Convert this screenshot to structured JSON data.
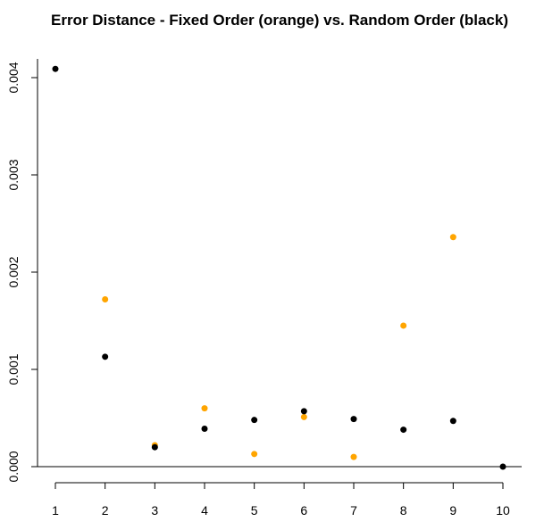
{
  "chart_data": {
    "type": "scatter",
    "title": "Error Distance - Fixed Order (orange) vs. Random Order (black)",
    "xlabel": "",
    "ylabel": "",
    "x_ticks": [
      "1",
      "2",
      "3",
      "4",
      "5",
      "6",
      "7",
      "8",
      "9",
      "10"
    ],
    "y_ticks": [
      "0.000",
      "0.001",
      "0.002",
      "0.003",
      "0.004"
    ],
    "xlim": [
      1,
      10
    ],
    "ylim": [
      0,
      0.004
    ],
    "grid": false,
    "series": [
      {
        "color": "#FFA500",
        "points": [
          {
            "x": 2,
            "y": 0.00172
          },
          {
            "x": 3,
            "y": 0.00022
          },
          {
            "x": 4,
            "y": 0.0006
          },
          {
            "x": 5,
            "y": 0.00013
          },
          {
            "x": 6,
            "y": 0.00051
          },
          {
            "x": 7,
            "y": 0.0001
          },
          {
            "x": 8,
            "y": 0.00145
          },
          {
            "x": 9,
            "y": 0.00236
          }
        ]
      },
      {
        "color": "#000000",
        "points": [
          {
            "x": 1,
            "y": 0.00409
          },
          {
            "x": 2,
            "y": 0.00113
          },
          {
            "x": 3,
            "y": 0.0002
          },
          {
            "x": 4,
            "y": 0.00039
          },
          {
            "x": 5,
            "y": 0.00048
          },
          {
            "x": 6,
            "y": 0.00057
          },
          {
            "x": 7,
            "y": 0.00049
          },
          {
            "x": 8,
            "y": 0.00038
          },
          {
            "x": 9,
            "y": 0.00047
          },
          {
            "x": 10,
            "y": 0.0
          }
        ]
      }
    ]
  }
}
